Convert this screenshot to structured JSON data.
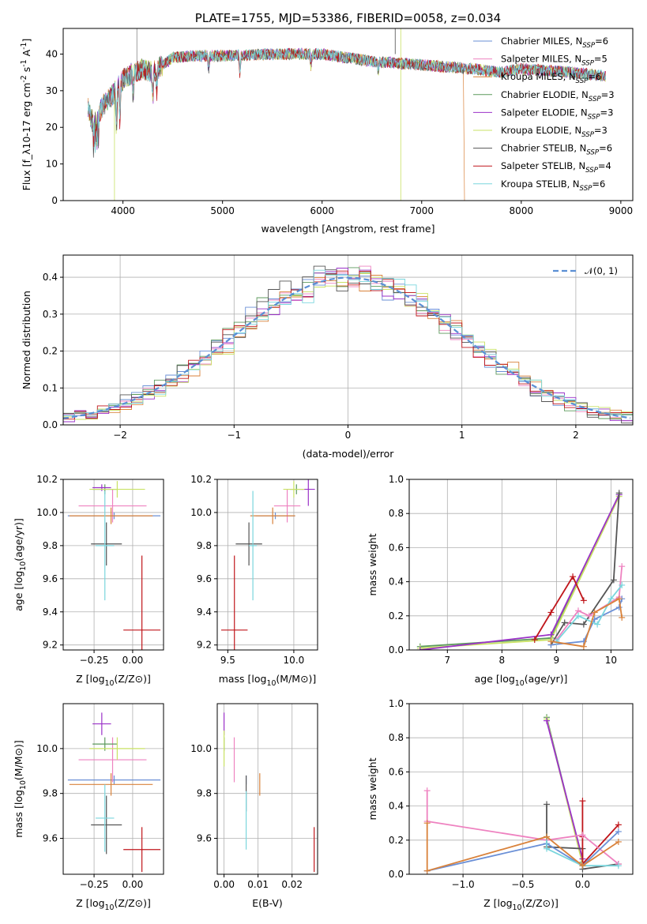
{
  "colors": {
    "chabrier_miles": "#6a8fd6",
    "salpeter_miles": "#ee82c0",
    "kroupa_miles": "#d9823b",
    "chabrier_elodie": "#5c9a5c",
    "salpeter_elodie": "#9b32c8",
    "kroupa_elodie": "#c9e264",
    "chabrier_stelib": "#555555",
    "salpeter_stelib": "#c0161b",
    "kroupa_stelib": "#7ad6dd",
    "gauss": "#5b8fd4"
  },
  "chart_data": [
    {
      "id": "spectrum",
      "type": "line",
      "title": "PLATE=1755, MJD=53386, FIBERID=0058, z=0.034",
      "xlabel": "wavelength [Angstrom, rest frame]",
      "ylabel": "Flux [f_λ10^-17 erg cm^-2 s^-1 A^-1]",
      "xlim": [
        3400,
        9120
      ],
      "ylim": [
        0,
        47
      ],
      "xticks": [
        4000,
        5000,
        6000,
        7000,
        8000,
        9000
      ],
      "yticks": [
        0,
        10,
        20,
        30,
        40
      ],
      "grid": false,
      "legend_position": "top-right",
      "legend": [
        "Chabrier MILES, N_SSP=6",
        "Salpeter MILES, N_SSP=5",
        "Kroupa MILES, N_SSP=6",
        "Chabrier ELODIE, N_SSP=3",
        "Salpeter ELODIE, N_SSP=3",
        "Kroupa ELODIE, N_SSP=3",
        "Chabrier STELIB, N_SSP=6",
        "Salpeter STELIB, N_SSP=4",
        "Kroupa STELIB, N_SSP=6"
      ],
      "series_keys": [
        "chabrier_miles",
        "salpeter_miles",
        "kroupa_miles",
        "chabrier_elodie",
        "salpeter_elodie",
        "kroupa_elodie",
        "chabrier_stelib",
        "salpeter_stelib",
        "kroupa_stelib"
      ],
      "continuum": {
        "x": [
          3650,
          3700,
          3800,
          3900,
          4000,
          4100,
          4200,
          4300,
          4400,
          4500,
          4700,
          5000,
          5500,
          6000,
          6500,
          7000,
          7500,
          7800,
          8000,
          8500,
          8850
        ],
        "y": [
          25,
          21,
          26,
          29,
          33,
          35,
          36,
          35,
          37,
          39,
          39.5,
          39.5,
          40,
          40,
          38,
          37,
          36,
          35,
          36,
          35,
          34
        ]
      }
    },
    {
      "id": "residuals",
      "type": "line",
      "xlabel": "(data-model)/error",
      "ylabel": "Normed distribution",
      "xlim": [
        -2.5,
        2.5
      ],
      "ylim": [
        0,
        0.46
      ],
      "xticks": [
        -2,
        -1,
        0,
        1,
        2
      ],
      "yticks": [
        0.0,
        0.1,
        0.2,
        0.3,
        0.4
      ],
      "grid": true,
      "legend_position": "top-right",
      "legend": [
        "𝒩(0, 1)"
      ],
      "bin_width": 0.1
    },
    {
      "id": "age_vs_Z",
      "type": "scatter",
      "xlabel": "Z [log10(Z/Z⊙)]",
      "ylabel": "age  [log10(age/yr)]",
      "xlim": [
        -0.45,
        0.2
      ],
      "ylim": [
        9.17,
        10.2
      ],
      "xticks": [
        -0.25,
        0.0
      ],
      "yticks": [
        9.2,
        9.4,
        9.6,
        9.8,
        10.0,
        10.2
      ],
      "grid": true,
      "points": [
        {
          "key": "chabrier_miles",
          "x": -0.12,
          "y": 9.98,
          "xerr": 0.3,
          "yerr": 0.02
        },
        {
          "key": "salpeter_miles",
          "x": -0.13,
          "y": 10.04,
          "xerr": 0.22,
          "yerr": 0.1
        },
        {
          "key": "kroupa_miles",
          "x": -0.14,
          "y": 9.98,
          "xerr": 0.27,
          "yerr": 0.05
        },
        {
          "key": "chabrier_elodie",
          "x": -0.18,
          "y": 10.14,
          "xerr": 0.08,
          "yerr": 0.03
        },
        {
          "key": "salpeter_elodie",
          "x": -0.2,
          "y": 10.15,
          "xerr": 0.06,
          "yerr": 0.02
        },
        {
          "key": "kroupa_elodie",
          "x": -0.1,
          "y": 10.14,
          "xerr": 0.18,
          "yerr": 0.05
        },
        {
          "key": "chabrier_stelib",
          "x": -0.17,
          "y": 9.81,
          "xerr": 0.1,
          "yerr": 0.13
        },
        {
          "key": "salpeter_stelib",
          "x": 0.06,
          "y": 9.29,
          "xerr": 0.12,
          "yerr": 0.45
        },
        {
          "key": "kroupa_stelib",
          "x": -0.18,
          "y": 9.8,
          "xerr": 0.06,
          "yerr": 0.33
        }
      ]
    },
    {
      "id": "age_vs_mass",
      "type": "scatter",
      "xlabel": "mass [log10(M/M⊙)]",
      "ylabel": "",
      "xlim": [
        9.42,
        10.18
      ],
      "ylim": [
        9.17,
        10.2
      ],
      "xticks": [
        9.5,
        10.0
      ],
      "yticks": [
        9.2,
        9.4,
        9.6,
        9.8,
        10.0,
        10.2
      ],
      "grid": true,
      "points": [
        {
          "key": "chabrier_miles",
          "x": 9.86,
          "y": 9.98,
          "xerr": 0.15,
          "yerr": 0.02
        },
        {
          "key": "salpeter_miles",
          "x": 9.95,
          "y": 10.04,
          "xerr": 0.1,
          "yerr": 0.1
        },
        {
          "key": "kroupa_miles",
          "x": 9.84,
          "y": 9.98,
          "xerr": 0.17,
          "yerr": 0.05
        },
        {
          "key": "chabrier_elodie",
          "x": 10.02,
          "y": 10.14,
          "xerr": 0.05,
          "yerr": 0.03
        },
        {
          "key": "salpeter_elodie",
          "x": 10.11,
          "y": 10.14,
          "xerr": 0.05,
          "yerr": 0.1
        },
        {
          "key": "kroupa_elodie",
          "x": 10.0,
          "y": 10.14,
          "xerr": 0.08,
          "yerr": 0.05
        },
        {
          "key": "chabrier_stelib",
          "x": 9.66,
          "y": 9.81,
          "xerr": 0.1,
          "yerr": 0.13
        },
        {
          "key": "salpeter_stelib",
          "x": 9.55,
          "y": 9.29,
          "xerr": 0.1,
          "yerr": 0.45
        },
        {
          "key": "kroupa_stelib",
          "x": 9.69,
          "y": 9.8,
          "xerr": 0.03,
          "yerr": 0.33
        }
      ]
    },
    {
      "id": "weight_vs_age",
      "type": "line",
      "xlabel": "age  [log10(age/yr)]",
      "ylabel": "mass weight",
      "xlim": [
        6.3,
        10.4
      ],
      "ylim": [
        0,
        1.0
      ],
      "xticks": [
        7,
        8,
        9,
        10
      ],
      "yticks": [
        0.0,
        0.2,
        0.4,
        0.6,
        0.8,
        1.0
      ],
      "grid": true,
      "series": [
        {
          "key": "chabrier_elodie",
          "x": [
            6.5,
            8.9,
            10.15
          ],
          "y": [
            0.02,
            0.07,
            0.91
          ]
        },
        {
          "key": "kroupa_elodie",
          "x": [
            6.5,
            8.9,
            10.15
          ],
          "y": [
            0.01,
            0.06,
            0.9
          ]
        },
        {
          "key": "salpeter_elodie",
          "x": [
            6.5,
            8.9,
            10.15
          ],
          "y": [
            0.0,
            0.09,
            0.91
          ]
        },
        {
          "key": "chabrier_stelib",
          "x": [
            8.9,
            9.15,
            9.5,
            10.05,
            10.15
          ],
          "y": [
            0.03,
            0.16,
            0.15,
            0.41,
            0.92
          ]
        },
        {
          "key": "salpeter_stelib",
          "x": [
            8.6,
            8.9,
            9.3,
            9.5
          ],
          "y": [
            0.06,
            0.22,
            0.43,
            0.29
          ]
        },
        {
          "key": "salpeter_miles",
          "x": [
            9.0,
            9.4,
            9.6,
            10.15,
            10.2
          ],
          "y": [
            0.06,
            0.23,
            0.2,
            0.31,
            0.49
          ]
        },
        {
          "key": "chabrier_miles",
          "x": [
            8.9,
            9.5,
            9.7,
            10.15,
            10.2
          ],
          "y": [
            0.03,
            0.05,
            0.18,
            0.25,
            0.3
          ]
        },
        {
          "key": "kroupa_stelib",
          "x": [
            9.0,
            9.4,
            9.75,
            10.0,
            10.2
          ],
          "y": [
            0.05,
            0.2,
            0.15,
            0.3,
            0.38
          ]
        },
        {
          "key": "kroupa_miles",
          "x": [
            8.9,
            9.5,
            9.7,
            10.15,
            10.2
          ],
          "y": [
            0.05,
            0.02,
            0.22,
            0.3,
            0.19
          ]
        }
      ]
    },
    {
      "id": "mass_vs_Z",
      "type": "scatter",
      "xlabel": "Z [log10(Z/Z⊙)]",
      "ylabel": "mass [log10(M/M⊙)]",
      "xlim": [
        -0.45,
        0.2
      ],
      "ylim": [
        9.44,
        10.2
      ],
      "xticks": [
        -0.25,
        0.0
      ],
      "yticks": [
        9.6,
        9.8,
        10.0
      ],
      "grid": true,
      "points": [
        {
          "key": "chabrier_miles",
          "x": -0.12,
          "y": 9.86,
          "xerr": 0.3,
          "yerr": 0.02
        },
        {
          "key": "salpeter_miles",
          "x": -0.13,
          "y": 9.95,
          "xerr": 0.22,
          "yerr": 0.1
        },
        {
          "key": "kroupa_miles",
          "x": -0.14,
          "y": 9.84,
          "xerr": 0.27,
          "yerr": 0.05
        },
        {
          "key": "chabrier_elodie",
          "x": -0.18,
          "y": 10.02,
          "xerr": 0.08,
          "yerr": 0.03
        },
        {
          "key": "salpeter_elodie",
          "x": -0.2,
          "y": 10.11,
          "xerr": 0.06,
          "yerr": 0.05
        },
        {
          "key": "kroupa_elodie",
          "x": -0.1,
          "y": 10.0,
          "xerr": 0.18,
          "yerr": 0.05
        },
        {
          "key": "chabrier_stelib",
          "x": -0.17,
          "y": 9.66,
          "xerr": 0.1,
          "yerr": 0.13
        },
        {
          "key": "salpeter_stelib",
          "x": 0.06,
          "y": 9.55,
          "xerr": 0.12,
          "yerr": 0.1
        },
        {
          "key": "kroupa_stelib",
          "x": -0.18,
          "y": 9.69,
          "xerr": 0.06,
          "yerr": 0.15
        }
      ]
    },
    {
      "id": "mass_vs_ebv",
      "type": "scatter",
      "xlabel": "E(B-V)",
      "ylabel": "",
      "xlim": [
        -0.002,
        0.0275
      ],
      "ylim": [
        9.44,
        10.2
      ],
      "xticks": [
        0.0,
        0.01,
        0.02
      ],
      "yticks": [
        9.6,
        9.8,
        10.0
      ],
      "grid": true,
      "points": [
        {
          "key": "chabrier_miles",
          "x": 0.0065,
          "y": 9.86,
          "xerr": 0,
          "yerr": 0.02
        },
        {
          "key": "salpeter_miles",
          "x": 0.003,
          "y": 9.95,
          "xerr": 0,
          "yerr": 0.1
        },
        {
          "key": "kroupa_miles",
          "x": 0.0105,
          "y": 9.84,
          "xerr": 0,
          "yerr": 0.05
        },
        {
          "key": "chabrier_elodie",
          "x": 0.0,
          "y": 10.02,
          "xerr": 0,
          "yerr": 0.03
        },
        {
          "key": "salpeter_elodie",
          "x": 0.0,
          "y": 10.11,
          "xerr": 0,
          "yerr": 0.05
        },
        {
          "key": "kroupa_elodie",
          "x": 0.0,
          "y": 10.0,
          "xerr": 0,
          "yerr": 0.08
        },
        {
          "key": "chabrier_stelib",
          "x": 0.0065,
          "y": 9.8,
          "xerr": 0,
          "yerr": 0.08
        },
        {
          "key": "salpeter_stelib",
          "x": 0.0265,
          "y": 9.55,
          "xerr": 0,
          "yerr": 0.1
        },
        {
          "key": "kroupa_stelib",
          "x": 0.0065,
          "y": 9.68,
          "xerr": 0,
          "yerr": 0.13
        }
      ]
    },
    {
      "id": "weight_vs_Z",
      "type": "line",
      "xlabel": "Z [log10(Z/Z⊙)]",
      "ylabel": "mass weight",
      "xlim": [
        -1.45,
        0.42
      ],
      "ylim": [
        0,
        1.0
      ],
      "xticks": [
        -1.0,
        -0.5,
        0.0
      ],
      "yticks": [
        0.0,
        0.2,
        0.4,
        0.6,
        0.8,
        1.0
      ],
      "grid": true,
      "series": [
        {
          "key": "chabrier_elodie",
          "x": [
            -0.3,
            0.0
          ],
          "y": [
            0.92,
            0.07
          ]
        },
        {
          "key": "kroupa_elodie",
          "x": [
            -0.3,
            0.0
          ],
          "y": [
            0.91,
            0.06
          ]
        },
        {
          "key": "salpeter_elodie",
          "x": [
            -0.3,
            0.0
          ],
          "y": [
            0.9,
            0.09
          ]
        },
        {
          "key": "chabrier_stelib",
          "x": [
            -0.3,
            -0.3,
            0.0,
            0.0,
            0.3
          ],
          "y": [
            0.41,
            0.16,
            0.15,
            0.03,
            0.06
          ]
        },
        {
          "key": "salpeter_stelib",
          "x": [
            0.0,
            0.0,
            0.0,
            0.3
          ],
          "y": [
            0.43,
            0.22,
            0.06,
            0.29
          ]
        },
        {
          "key": "salpeter_miles",
          "x": [
            -1.3,
            -1.3,
            -0.3,
            0.0,
            0.3
          ],
          "y": [
            0.49,
            0.31,
            0.2,
            0.23,
            0.06
          ]
        },
        {
          "key": "chabrier_miles",
          "x": [
            -1.3,
            -0.3,
            0.0,
            0.3
          ],
          "y": [
            0.02,
            0.18,
            0.05,
            0.25
          ]
        },
        {
          "key": "kroupa_stelib",
          "x": [
            -0.3,
            -0.3,
            0.0,
            0.3
          ],
          "y": [
            0.22,
            0.15,
            0.05,
            0.05
          ]
        },
        {
          "key": "kroupa_miles",
          "x": [
            -1.3,
            -1.3,
            -0.3,
            0.0,
            0.3
          ],
          "y": [
            0.3,
            0.02,
            0.22,
            0.05,
            0.19
          ]
        }
      ]
    }
  ]
}
